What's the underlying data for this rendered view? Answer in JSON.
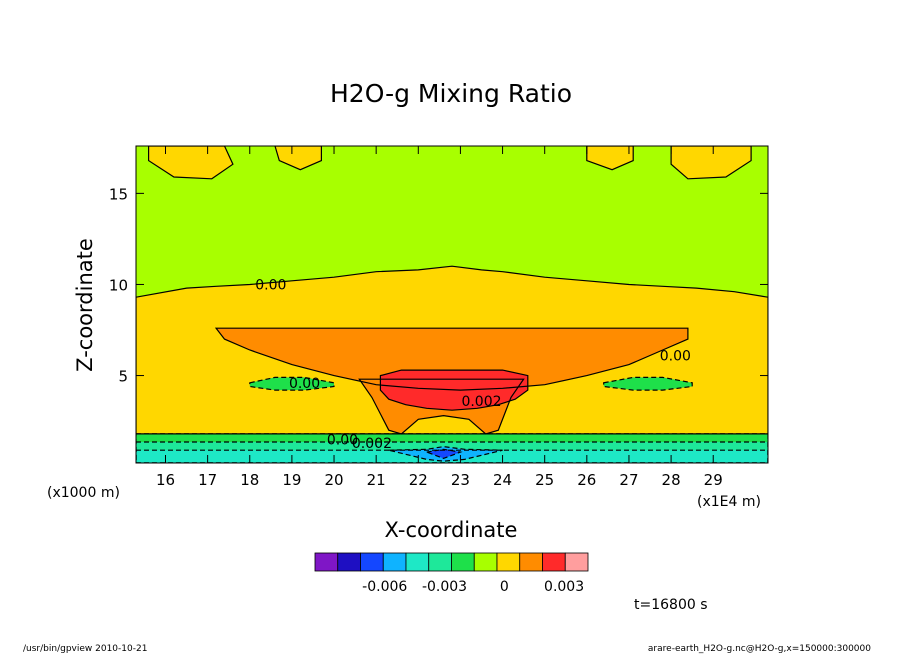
{
  "chart_data": {
    "type": "heatmap",
    "title": "H2O-g Mixing Ratio",
    "xlabel": "X-coordinate",
    "ylabel": "Z-coordinate",
    "x_unit": "(x1E4 m)",
    "y_unit": "(x1000 m)",
    "xlim": [
      15.3,
      30.3
    ],
    "ylim": [
      0.2,
      17.6
    ],
    "x_ticks": [
      16,
      17,
      18,
      19,
      20,
      21,
      22,
      23,
      24,
      25,
      26,
      27,
      28,
      29
    ],
    "y_ticks": [
      5,
      10,
      15
    ],
    "colorbar": {
      "bins": [
        {
          "color": "#7f16c6"
        },
        {
          "color": "#1e0fc2"
        },
        {
          "color": "#1447ff"
        },
        {
          "color": "#0fb3ff"
        },
        {
          "color": "#1ee8c6"
        },
        {
          "color": "#1ee89a"
        },
        {
          "color": "#1ee04a"
        },
        {
          "color": "#a8ff00"
        },
        {
          "color": "#ffd700"
        },
        {
          "color": "#ff8c00"
        },
        {
          "color": "#ff2a2a"
        },
        {
          "color": "#ff9e9e"
        }
      ],
      "tick_labels": [
        {
          "label": "-0.006",
          "value": -0.006
        },
        {
          "label": "-0.003",
          "value": -0.003
        },
        {
          "label": "0",
          "value": 0
        },
        {
          "label": "0.003",
          "value": 0.003
        }
      ],
      "vmin": -0.0095,
      "vmax": 0.0042
    },
    "background_color": "#a8ff00",
    "regions": [
      {
        "name": "positive-envelope",
        "level": 0.0005,
        "color": "#ffd700",
        "x": [
          15.3,
          16.5,
          17.2,
          18,
          19,
          20,
          21,
          22,
          22.8,
          23.5,
          24,
          25,
          26,
          27,
          27.8,
          28.6,
          29.5,
          30.3,
          30.3,
          15.3
        ],
        "y": [
          9.3,
          9.8,
          9.9,
          10.0,
          10.2,
          10.4,
          10.7,
          10.8,
          11.0,
          10.8,
          10.7,
          10.4,
          10.2,
          10.0,
          9.9,
          9.8,
          9.6,
          9.3,
          1.8,
          1.8
        ]
      },
      {
        "name": "upper-left-lobe",
        "level": 0.0005,
        "color": "#ffd700",
        "x": [
          15.6,
          16.1,
          16.8,
          17.4,
          17.6,
          17.1,
          16.2,
          15.6
        ],
        "y": [
          17.6,
          17.6,
          17.6,
          17.6,
          16.6,
          15.8,
          15.9,
          16.8
        ]
      },
      {
        "name": "upper-left-small-lobe",
        "level": 0.0005,
        "color": "#ffd700",
        "x": [
          18.6,
          19.2,
          19.7,
          19.7,
          19.2,
          18.7
        ],
        "y": [
          17.6,
          17.6,
          17.6,
          16.8,
          16.3,
          16.8
        ]
      },
      {
        "name": "upper-right-small-lobe",
        "level": 0.0005,
        "color": "#ffd700",
        "x": [
          26,
          26.5,
          27.1,
          27.1,
          26.6,
          26
        ],
        "y": [
          17.6,
          17.6,
          17.6,
          16.8,
          16.3,
          16.8
        ]
      },
      {
        "name": "upper-right-lobe",
        "level": 0.0005,
        "color": "#ffd700",
        "x": [
          28.0,
          28.6,
          29.3,
          29.9,
          29.9,
          29.3,
          28.4,
          28.0
        ],
        "y": [
          17.6,
          17.6,
          17.6,
          17.6,
          16.8,
          15.9,
          15.8,
          16.6
        ]
      },
      {
        "name": "orange-core",
        "level": 0.0015,
        "color": "#ff8c00",
        "x": [
          17.2,
          21,
          23,
          25,
          28.4,
          28.4,
          27.8,
          27,
          26,
          25,
          24,
          23,
          22,
          21,
          20,
          19,
          18,
          17.4
        ],
        "y": [
          7.6,
          7.6,
          7.6,
          7.6,
          7.6,
          7.0,
          6.4,
          5.6,
          5.0,
          4.5,
          4.3,
          4.2,
          4.3,
          4.5,
          5.0,
          5.6,
          6.4,
          7.0
        ]
      },
      {
        "name": "orange-plume",
        "level": 0.0015,
        "color": "#ff8c00",
        "x": [
          20.6,
          21.6,
          22.6,
          23.6,
          24.5,
          24.2,
          23.9,
          23.6,
          23.2,
          22.6,
          22,
          21.6,
          21.3,
          20.9
        ],
        "y": [
          4.8,
          4.8,
          4.8,
          4.8,
          4.8,
          3.8,
          2.0,
          1.8,
          2.6,
          2.8,
          2.6,
          1.8,
          2.0,
          3.8
        ]
      },
      {
        "name": "red-core",
        "level": 0.0025,
        "color": "#ff2a2a",
        "x": [
          21.1,
          21.6,
          22.2,
          22.8,
          23.4,
          24.0,
          24.6,
          24.6,
          24.3,
          23.9,
          23.4,
          22.8,
          22.2,
          21.7,
          21.3,
          21.1
        ],
        "y": [
          5.0,
          5.3,
          5.3,
          5.3,
          5.3,
          5.3,
          5.0,
          4.2,
          3.7,
          3.4,
          3.2,
          3.1,
          3.2,
          3.4,
          3.7,
          4.2
        ]
      },
      {
        "name": "left-green-lens",
        "level": -0.0005,
        "color": "#1ee04a",
        "x": [
          18.0,
          18.6,
          19.3,
          20.0,
          20.0,
          19.3,
          18.6,
          18.0
        ],
        "y": [
          4.6,
          4.9,
          4.9,
          4.6,
          4.4,
          4.2,
          4.2,
          4.4
        ]
      },
      {
        "name": "right-green-lens",
        "level": -0.0005,
        "color": "#1ee04a",
        "x": [
          26.4,
          27.1,
          27.8,
          28.5,
          28.5,
          27.8,
          27.1,
          26.4
        ],
        "y": [
          4.6,
          4.9,
          4.9,
          4.6,
          4.4,
          4.2,
          4.2,
          4.4
        ]
      },
      {
        "name": "surface-band-green",
        "level": -0.0015,
        "color": "#1ee04a",
        "x": [
          15.3,
          30.3,
          30.3,
          15.3
        ],
        "y": [
          1.8,
          1.8,
          0.2,
          0.2
        ]
      },
      {
        "name": "surface-band-teal",
        "level": -0.0035,
        "color": "#1ee89a",
        "x": [
          15.3,
          30.3,
          30.3,
          15.3
        ],
        "y": [
          1.35,
          1.35,
          0.2,
          0.2
        ]
      },
      {
        "name": "surface-band-cyan",
        "level": -0.0045,
        "color": "#1ee8c6",
        "x": [
          15.3,
          30.3,
          30.3,
          15.3
        ],
        "y": [
          0.9,
          0.9,
          0.2,
          0.2
        ]
      },
      {
        "name": "surface-blue-dip",
        "level": -0.0065,
        "color": "#0fb3ff",
        "x": [
          21.3,
          22.2,
          22.6,
          23.1,
          24.0,
          23.1,
          22.6,
          22.2
        ],
        "y": [
          0.9,
          0.95,
          1.1,
          0.95,
          0.9,
          0.4,
          0.3,
          0.4
        ]
      },
      {
        "name": "surface-deep-blue",
        "level": -0.0075,
        "color": "#1447ff",
        "x": [
          22.2,
          22.6,
          23.0,
          22.6
        ],
        "y": [
          0.8,
          0.95,
          0.8,
          0.45
        ]
      }
    ],
    "contour_labels": [
      {
        "text": "0.00",
        "x": 18.5,
        "y": 10.0
      },
      {
        "text": "0.00",
        "x": 28.1,
        "y": 6.1
      },
      {
        "text": "0.00",
        "x": 19.3,
        "y": 4.6
      },
      {
        "text": "0.002",
        "x": 23.5,
        "y": 3.6
      },
      {
        "text": "0.00",
        "x": 20.2,
        "y": 1.5
      },
      {
        "text": "0.002",
        "x": 20.9,
        "y": 1.3
      }
    ],
    "annotations": {
      "time": "t=16800 s",
      "footer_left": "/usr/bin/gpview  2010-10-21",
      "footer_right": "arare-earth_H2O-g.nc@H2O-g,x=150000:300000"
    }
  }
}
